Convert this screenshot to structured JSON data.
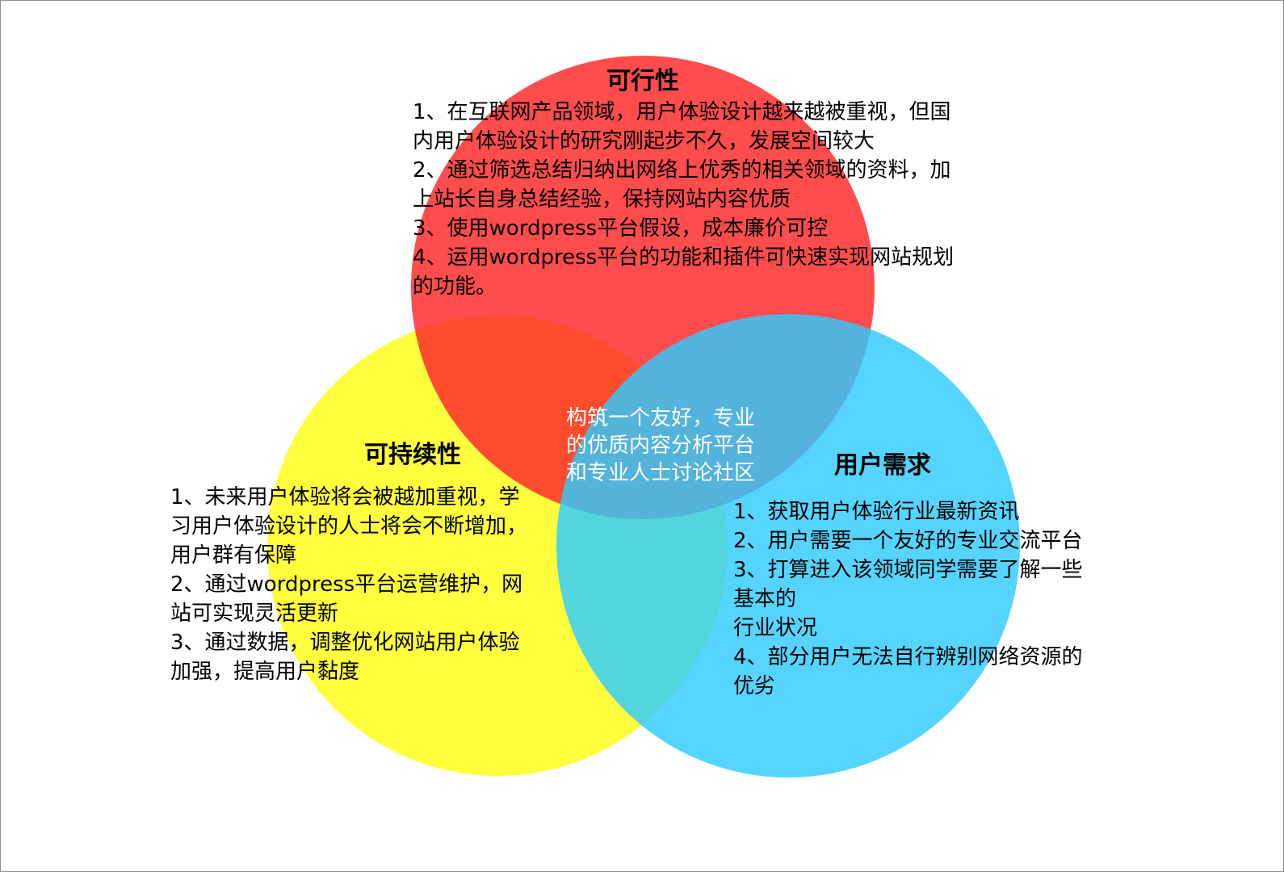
{
  "colors": {
    "feasibility": "#ff2d2d",
    "sustainability": "#ffff22",
    "user_needs": "#2ecbff"
  },
  "feasibility": {
    "title": "可行性",
    "items": [
      "1、在互联网产品领域，用户体验设计越来越被重视，但国内用户体验设计的研究刚起步不久，发展空间较大",
      "2、通过筛选总结归纳出网络上优秀的相关领域的资料，加上站长自身总结经验，保持网站内容优质",
      "3、使用wordpress平台假设，成本廉价可控",
      "4、运用wordpress平台的功能和插件可快速实现网站规划的功能。"
    ]
  },
  "sustainability": {
    "title": "可持续性",
    "items": [
      "1、未来用户体验将会被越加重视，学习用户体验设计的人士将会不断增加，用户群有保障",
      "2、通过wordpress平台运营维护，网站可实现灵活更新",
      "3、通过数据，调整优化网站用户体验加强，提高用户黏度"
    ]
  },
  "user_needs": {
    "title": "用户需求",
    "items": [
      "1、获取用户体验行业最新资讯",
      "2、用户需要一个友好的专业交流平台",
      "3、打算进入该领域同学需要了解一些基本的",
      "行业状况",
      "4、部分用户无法自行辨别网络资源的优劣"
    ]
  },
  "center": {
    "text": "构筑一个友好，专业的优质内容分析平台和专业人士讨论社区"
  }
}
